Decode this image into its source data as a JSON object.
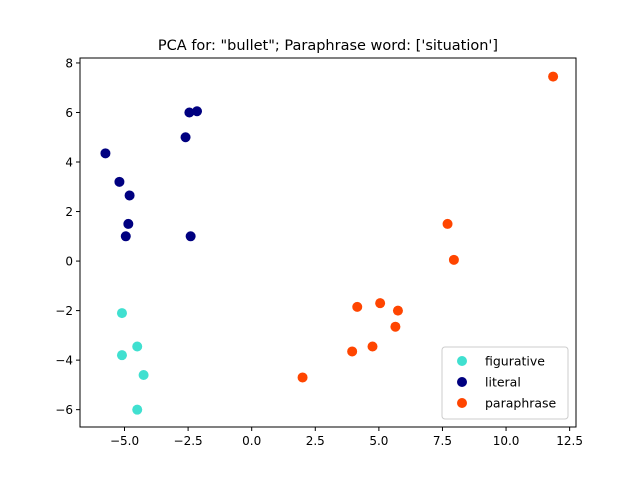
{
  "chart_data": {
    "type": "scatter",
    "title": "PCA for: \"bullet\"; Paraphrase word: ['situation']",
    "xlabel": "",
    "ylabel": "",
    "xlim": [
      -6.75,
      12.75
    ],
    "ylim": [
      -6.7,
      8.2
    ],
    "xticks": [
      -5.0,
      -2.5,
      0.0,
      2.5,
      5.0,
      7.5,
      10.0,
      12.5
    ],
    "xtick_labels": [
      "−5.0",
      "−2.5",
      "0.0",
      "2.5",
      "5.0",
      "7.5",
      "10.0",
      "12.5"
    ],
    "yticks": [
      -6,
      -4,
      -2,
      0,
      2,
      4,
      6,
      8
    ],
    "ytick_labels": [
      "−6",
      "−4",
      "−2",
      "0",
      "2",
      "4",
      "6",
      "8"
    ],
    "grid": false,
    "legend_position": "lower-right",
    "series": [
      {
        "name": "figurative",
        "color": "#40e0d0",
        "points": [
          [
            -5.1,
            -2.1
          ],
          [
            -5.1,
            -3.8
          ],
          [
            -4.5,
            -3.45
          ],
          [
            -4.25,
            -4.6
          ],
          [
            -4.5,
            -6.0
          ]
        ]
      },
      {
        "name": "literal",
        "color": "#000080",
        "points": [
          [
            -5.75,
            4.35
          ],
          [
            -5.2,
            3.2
          ],
          [
            -4.8,
            2.65
          ],
          [
            -4.85,
            1.5
          ],
          [
            -4.95,
            1.0
          ],
          [
            -2.6,
            5.0
          ],
          [
            -2.45,
            6.0
          ],
          [
            -2.15,
            6.05
          ],
          [
            -2.4,
            1.0
          ]
        ]
      },
      {
        "name": "paraphrase",
        "color": "#ff4500",
        "points": [
          [
            11.85,
            7.45
          ],
          [
            7.7,
            1.5
          ],
          [
            7.95,
            0.05
          ],
          [
            4.15,
            -1.85
          ],
          [
            5.05,
            -1.7
          ],
          [
            5.75,
            -2.0
          ],
          [
            5.65,
            -2.65
          ],
          [
            3.95,
            -3.65
          ],
          [
            4.75,
            -3.45
          ],
          [
            2.0,
            -4.7
          ]
        ]
      }
    ]
  }
}
